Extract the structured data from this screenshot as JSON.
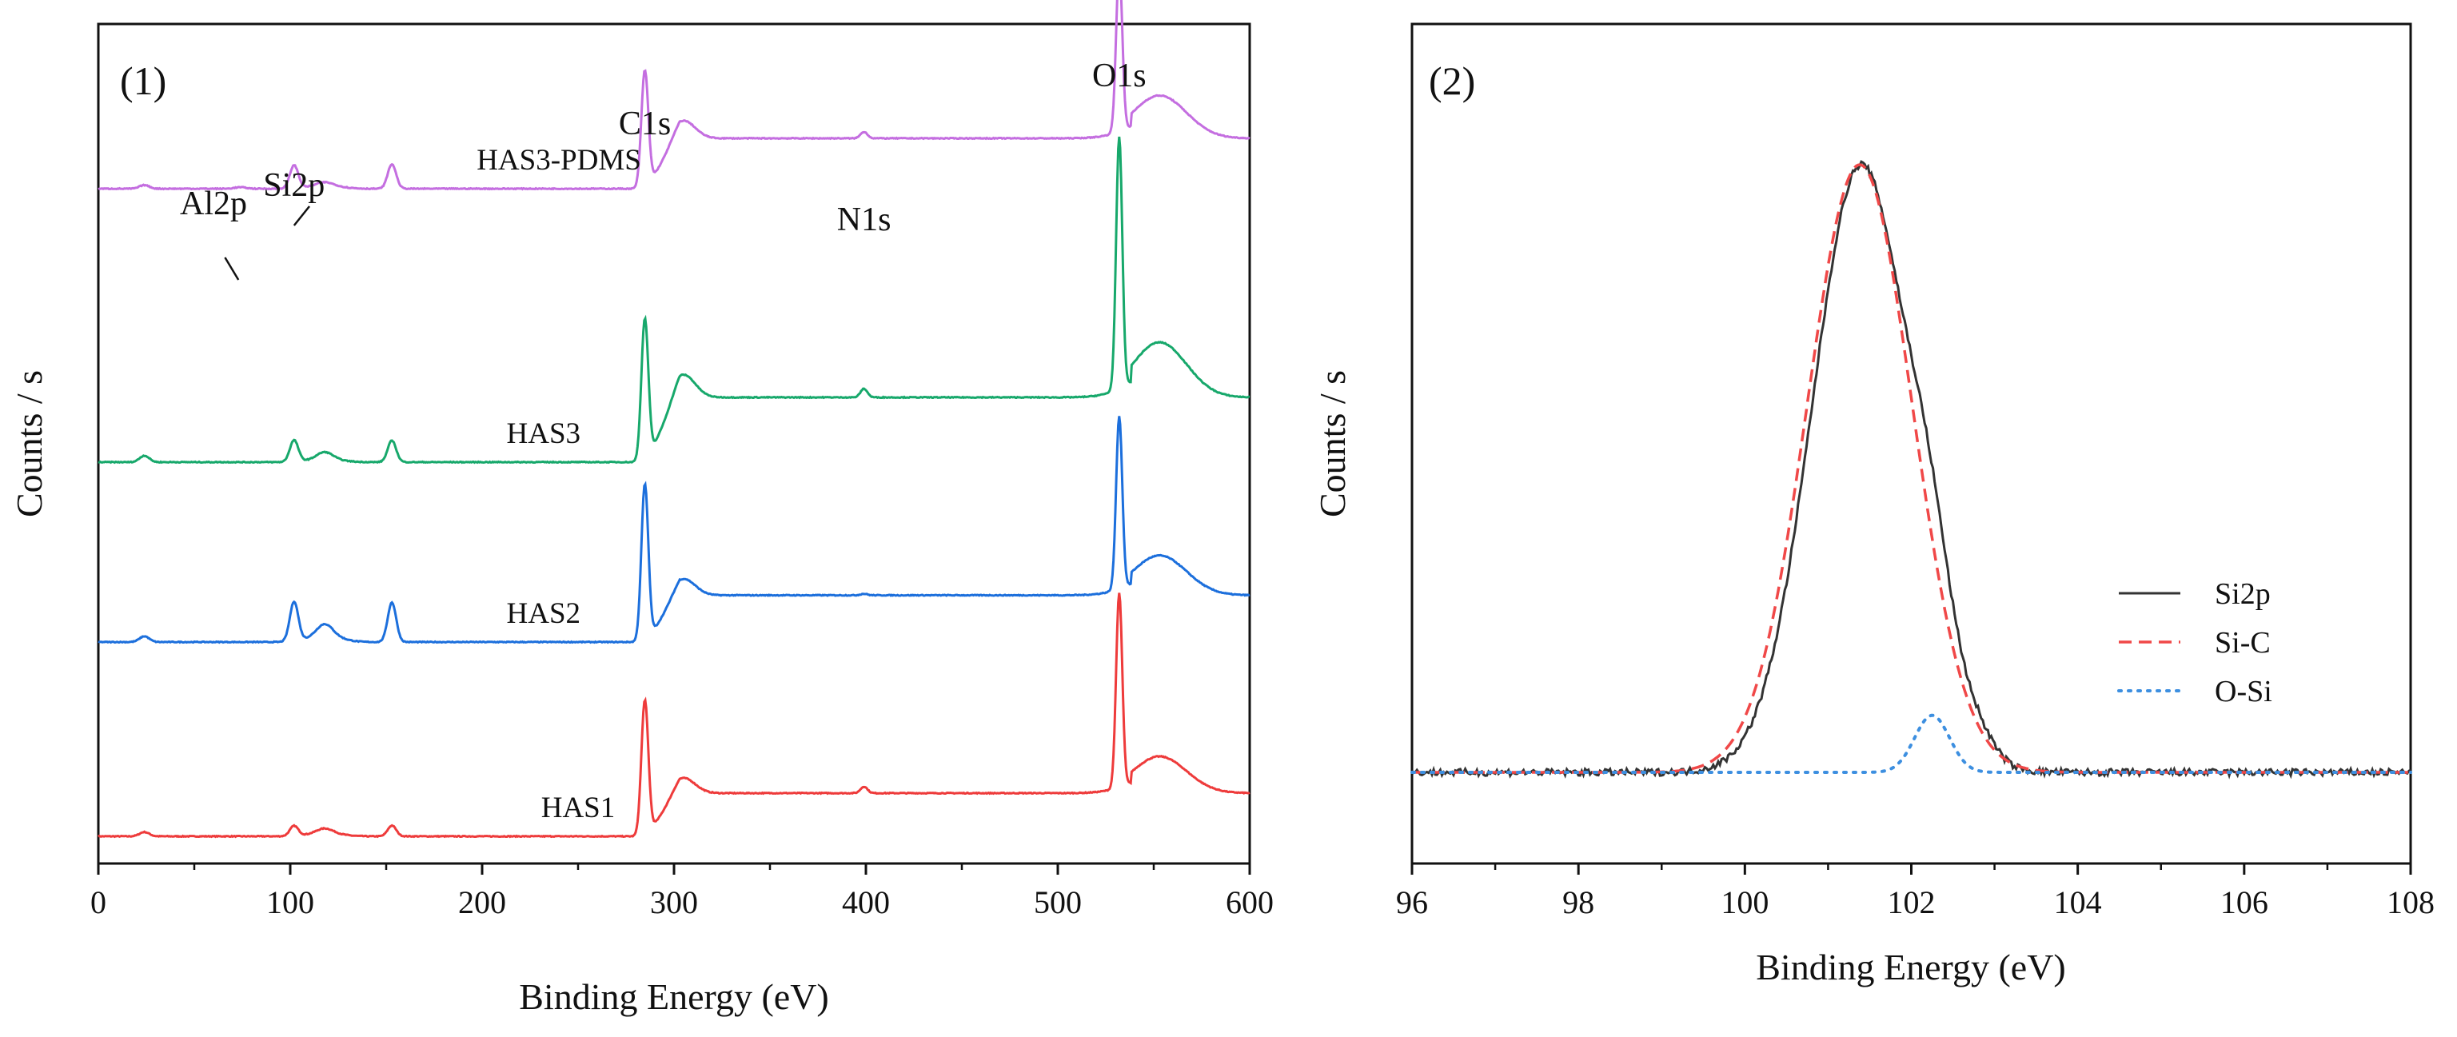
{
  "figure": {
    "panels": [
      "(1)",
      "(2)"
    ],
    "colors": {
      "HAS1": "#ee3b3b",
      "HAS2": "#1c6fdc",
      "HAS3": "#17a86b",
      "HAS3-PDMS": "#c46ee0",
      "Si2p": "#333333",
      "Si-C": "#f04848",
      "O-Si": "#3d8fe0"
    }
  },
  "chart_data": [
    {
      "type": "line",
      "panel": "(1)",
      "xlabel": "Binding Energy (eV)",
      "ylabel": "Counts / s",
      "xlim": [
        0,
        600
      ],
      "ylim": [
        0,
        100
      ],
      "xticks": [
        0,
        100,
        200,
        300,
        400,
        500,
        600
      ],
      "yticks_visible": false,
      "peak_labels": [
        {
          "text": "Al2p",
          "x": 74
        },
        {
          "text": "Si2p",
          "x": 102
        },
        {
          "text": "C1s",
          "x": 284.8
        },
        {
          "text": "N1s",
          "x": 399
        },
        {
          "text": "O1s",
          "x": 532
        }
      ],
      "peaks": [
        {
          "x": 24,
          "w": 2.5
        },
        {
          "x": 74,
          "w": 3
        },
        {
          "x": 102,
          "w": 2.2
        },
        {
          "x": 118,
          "w": 4
        },
        {
          "x": 153,
          "w": 2.2
        },
        {
          "x": 284.8,
          "w": 1.8
        },
        {
          "x": 399,
          "w": 1.8
        },
        {
          "x": 532,
          "w": 1.6
        }
      ],
      "series": [
        {
          "name": "HAS1",
          "label": "HAS1",
          "label_x": 250,
          "baseline": 0,
          "step": 6,
          "peak_heights": [
            0.6,
            0,
            1.4,
            0.6,
            1.5,
            19,
            0.9,
            27
          ]
        },
        {
          "name": "HAS2",
          "label": "HAS2",
          "label_x": 232,
          "baseline": 27,
          "step": 6.5,
          "peak_heights": [
            0.8,
            0,
            5.5,
            1.5,
            5.5,
            22,
            0.2,
            24
          ]
        },
        {
          "name": "HAS3",
          "label": "HAS3",
          "label_x": 232,
          "baseline": 52,
          "step": 9,
          "peak_heights": [
            0.9,
            0,
            3,
            0.9,
            3,
            20,
            1.2,
            35
          ]
        },
        {
          "name": "HAS3-PDMS",
          "label": "HAS3-PDMS",
          "label_x": 240,
          "baseline": 90,
          "step": 7,
          "peak_heights": [
            0.5,
            0.2,
            3.2,
            0.4,
            3.4,
            16.5,
            0.9,
            23
          ]
        }
      ]
    },
    {
      "type": "line",
      "panel": "(2)",
      "xlabel": "Binding Energy (eV)",
      "ylabel": "Counts / s",
      "xlim": [
        96,
        108
      ],
      "ylim": [
        0,
        100
      ],
      "xticks": [
        96,
        98,
        100,
        102,
        104,
        106,
        108
      ],
      "yticks_visible": false,
      "baseline": 12,
      "series": [
        {
          "name": "Si2p",
          "label": "Si2p",
          "style": "solid",
          "components": [
            {
              "center": 101.4,
              "height": 80,
              "sigma": 0.59
            },
            {
              "center": 102.25,
              "height": 12,
              "sigma": 0.25
            },
            {
              "center": 102.8,
              "height": 2.5,
              "sigma": 0.2
            }
          ]
        },
        {
          "name": "Si-C",
          "label": "Si-C",
          "style": "dashed",
          "components": [
            {
              "center": 101.38,
              "height": 80,
              "sigma": 0.63
            }
          ]
        },
        {
          "name": "O-Si",
          "label": "O-Si",
          "style": "dotted",
          "components": [
            {
              "center": 102.25,
              "height": 7.5,
              "sigma": 0.21
            }
          ]
        }
      ]
    }
  ]
}
